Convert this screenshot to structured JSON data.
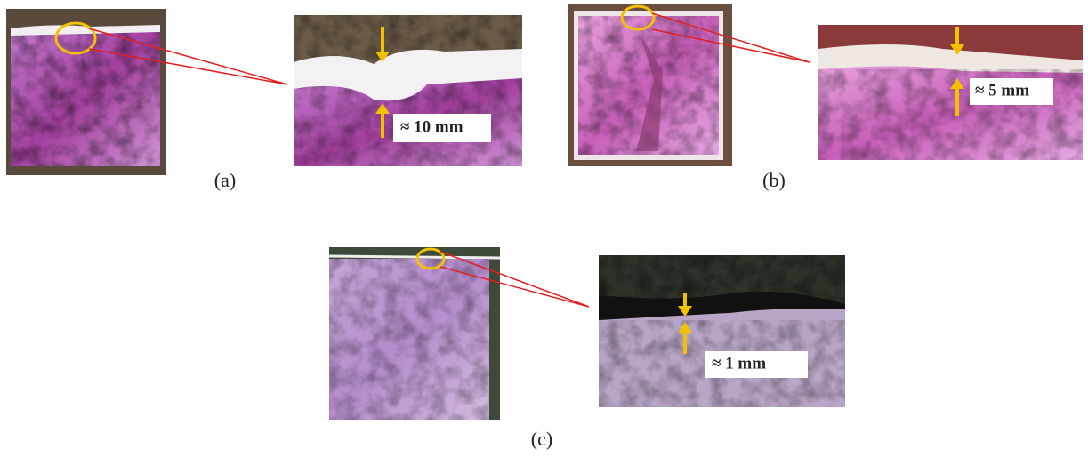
{
  "panels": [
    {
      "label": "(a)",
      "measurement": "≈ 10 mm"
    },
    {
      "label": "(b)",
      "measurement": "≈ 5 mm"
    },
    {
      "label": "(c)",
      "measurement": "≈ 1 mm"
    }
  ]
}
